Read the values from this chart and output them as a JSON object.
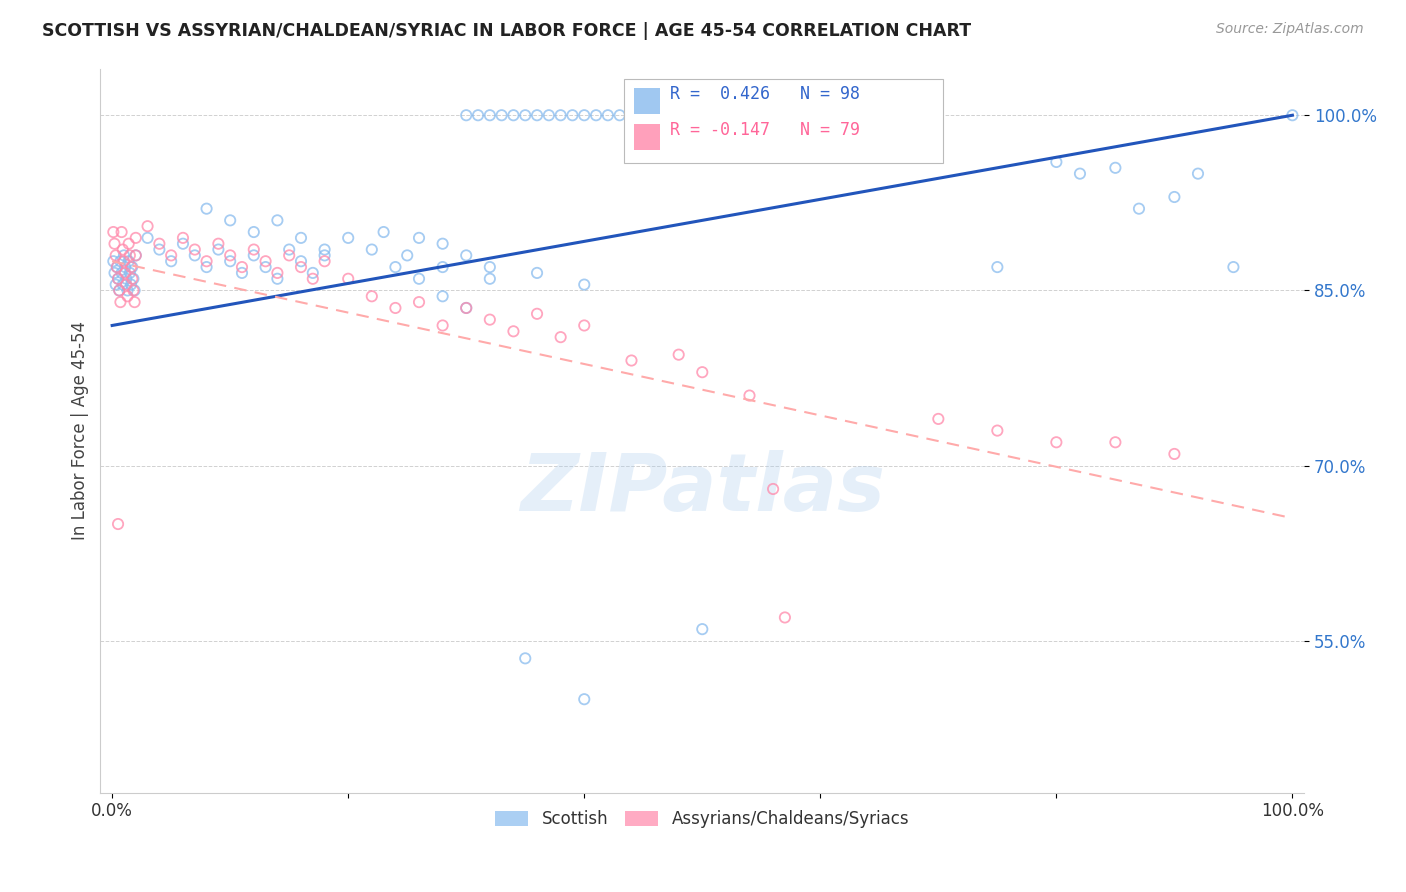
{
  "title": "SCOTTISH VS ASSYRIAN/CHALDEAN/SYRIAC IN LABOR FORCE | AGE 45-54 CORRELATION CHART",
  "source": "Source: ZipAtlas.com",
  "ylabel": "In Labor Force | Age 45-54",
  "xlim": [
    -0.01,
    1.01
  ],
  "ylim": [
    0.42,
    1.04
  ],
  "ytick_positions": [
    1.0,
    0.85,
    0.7,
    0.55
  ],
  "ytick_labels": [
    "100.0%",
    "85.0%",
    "70.0%",
    "55.0%"
  ],
  "watermark": "ZIPatlas",
  "scottish_R": 0.426,
  "scottish_N": 98,
  "assyrian_R": -0.147,
  "assyrian_N": 79,
  "scottish_color": "#88BBEE",
  "assyrian_color": "#FF88AA",
  "scottish_line_color": "#2255BB",
  "assyrian_line_color": "#FFAAAA",
  "legend_scottish": "Scottish",
  "legend_assyrian": "Assyrians/Chaldeans/Syriacs",
  "scottish_line_x0": 0.0,
  "scottish_line_y0": 0.82,
  "scottish_line_x1": 1.0,
  "scottish_line_y1": 1.0,
  "assyrian_line_x0": 0.0,
  "assyrian_line_y0": 0.875,
  "assyrian_line_x1": 1.0,
  "assyrian_line_y1": 0.655
}
